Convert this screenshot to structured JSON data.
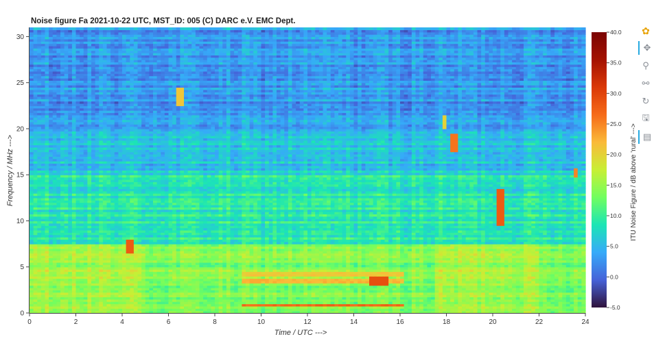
{
  "chart_data": {
    "type": "heatmap",
    "title": "Noise figure Fa  2021-10-22  UTC,  MST_ID:  005   (C) DARC e.V. EMC Dept.",
    "xlabel": "Time / UTC --->",
    "ylabel": "Frequency / MHz --->",
    "xlim": [
      0,
      24
    ],
    "ylim": [
      0,
      31
    ],
    "x_ticks": [
      "0",
      "2",
      "4",
      "6",
      "8",
      "10",
      "12",
      "14",
      "16",
      "18",
      "20",
      "22",
      "24"
    ],
    "y_ticks": [
      "0",
      "5",
      "10",
      "15",
      "20",
      "25",
      "30"
    ],
    "colorbar": {
      "label": "ITU Noise Figure / dB above 'rural' --->",
      "range": [
        -5,
        40
      ],
      "ticks": [
        "40.0",
        "35.0",
        "30.0",
        "25.0",
        "20.0",
        "15.0",
        "10.0",
        "5.0",
        "0.0",
        "-5.0"
      ],
      "colormap": "turbo"
    },
    "features": [
      {
        "kind": "band_floor_db",
        "freq_mhz": [
          0,
          7.5
        ],
        "value_db": 14
      },
      {
        "kind": "band_floor_db",
        "freq_mhz": [
          7.5,
          15
        ],
        "value_db": 9
      },
      {
        "kind": "band_floor_db",
        "freq_mhz": [
          15,
          20
        ],
        "value_db": 6
      },
      {
        "kind": "band_floor_db",
        "freq_mhz": [
          20,
          31
        ],
        "value_db": 3
      },
      {
        "kind": "hline",
        "freq_mhz": 0.9,
        "time_utc": [
          9.2,
          16.2
        ],
        "value_db": 27
      },
      {
        "kind": "hline",
        "freq_mhz": 3.5,
        "time_utc": [
          9.2,
          16.2
        ],
        "value_db": 22
      },
      {
        "kind": "hline",
        "freq_mhz": 4.3,
        "time_utc": [
          9.2,
          16.2
        ],
        "value_db": 21
      },
      {
        "kind": "hotspot",
        "freq_mhz": 3.5,
        "time_utc": 15.1,
        "value_db": 29
      },
      {
        "kind": "vline",
        "time_utc": 20.3,
        "freq_mhz": [
          9.5,
          13.5
        ],
        "value_db": 28
      },
      {
        "kind": "vline",
        "time_utc": 18.3,
        "freq_mhz": [
          17.5,
          19.5
        ],
        "value_db": 26
      },
      {
        "kind": "vline",
        "time_utc": 6.5,
        "freq_mhz": [
          22.5,
          24.5
        ],
        "value_db": 21
      },
      {
        "kind": "vline",
        "time_utc": 4.3,
        "freq_mhz": [
          6.5,
          8
        ],
        "value_db": 28
      },
      {
        "kind": "vline",
        "time_utc": 17.9,
        "freq_mhz": [
          20,
          21.5
        ],
        "value_db": 20
      },
      {
        "kind": "vline",
        "time_utc": 23.6,
        "freq_mhz": [
          14.7,
          15.7
        ],
        "value_db": 25
      }
    ]
  },
  "toolbar": {
    "tools": [
      {
        "name": "bokeh-logo-icon",
        "glyph": "✿"
      },
      {
        "name": "pan-tool-icon",
        "glyph": "✥"
      },
      {
        "name": "box-zoom-icon",
        "glyph": "⚲"
      },
      {
        "name": "wheel-zoom-icon",
        "glyph": "⚯"
      },
      {
        "name": "reset-icon",
        "glyph": "↻"
      },
      {
        "name": "save-icon",
        "glyph": "🖫"
      },
      {
        "name": "hover-icon",
        "glyph": "▤"
      }
    ]
  }
}
